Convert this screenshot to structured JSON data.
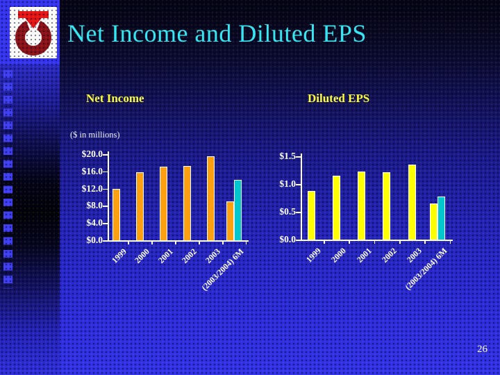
{
  "slide": {
    "title": "Net Income and Diluted EPS",
    "page_number": "26"
  },
  "theme": {
    "title_color": "#33E8F2",
    "heading_color": "#FFFF33",
    "axis_text_color": "#FFFFFF",
    "background_top": "#05051A",
    "background_bottom": "#3232EA",
    "net_income_bar_color": "#FFA010",
    "diluted_eps_bar_color": "#FFFF00",
    "six_month_bar_color": "#00C6CE"
  },
  "logo": {
    "name": "donut-arrow-logo",
    "arrow_color": "#E41414",
    "ring_color": "#8A1118",
    "background": "#FFFFFF"
  },
  "chart_data": [
    {
      "type": "bar",
      "title": "Net Income",
      "unit_note": "($ in millions)",
      "categories": [
        "1999",
        "2000",
        "2001",
        "2002",
        "2003",
        "(2003/2004) 6M"
      ],
      "series": [
        {
          "name": "net-income",
          "color": "#FFA010",
          "values": [
            12.0,
            15.8,
            17.1,
            17.2,
            19.5,
            9.0
          ]
        },
        {
          "name": "six-month-comparison",
          "color": "#00C6CE",
          "values": [
            null,
            null,
            null,
            null,
            null,
            14.0
          ]
        }
      ],
      "ylim": [
        0,
        20
      ],
      "ytick_values": [
        0,
        4,
        8,
        12,
        16,
        20
      ],
      "ytick_labels": [
        "$0.0",
        "$4.0",
        "$8.0",
        "$12.0",
        "$16.0",
        "$20.0"
      ],
      "grid": false,
      "legend": false,
      "x_label_rotation": 45
    },
    {
      "type": "bar",
      "title": "Diluted EPS",
      "unit_note": "",
      "categories": [
        "1999",
        "2000",
        "2001",
        "2002",
        "2003",
        "(2003/2004) 6M"
      ],
      "series": [
        {
          "name": "diluted-eps",
          "color": "#FFFF00",
          "values": [
            0.88,
            1.15,
            1.22,
            1.21,
            1.35,
            0.65
          ]
        },
        {
          "name": "six-month-comparison",
          "color": "#00C6CE",
          "values": [
            null,
            null,
            null,
            null,
            null,
            0.78
          ]
        }
      ],
      "ylim": [
        0,
        1.5
      ],
      "ytick_values": [
        0,
        0.5,
        1.0,
        1.5
      ],
      "ytick_labels": [
        "$0.0",
        "$0.5",
        "$1.0",
        "$1.5"
      ],
      "grid": false,
      "legend": false,
      "x_label_rotation": 45
    }
  ]
}
